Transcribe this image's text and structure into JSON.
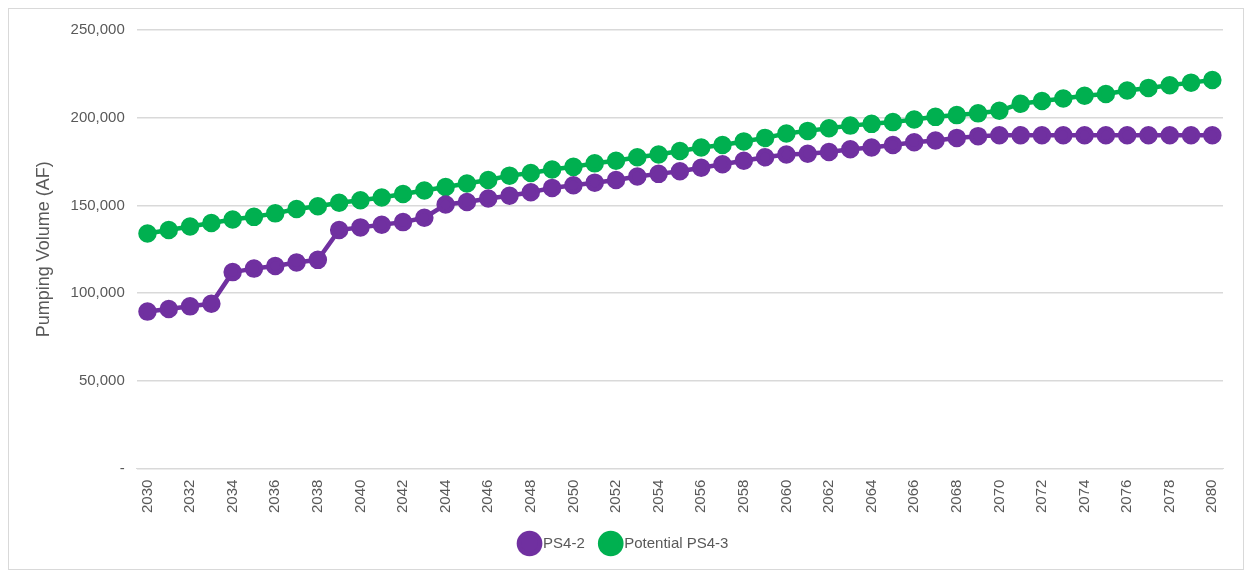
{
  "chart_data": {
    "type": "line",
    "ylabel": "Pumping Volume (AF)",
    "categories": [
      "2030",
      null,
      "2032",
      null,
      "2034",
      null,
      "2036",
      null,
      "2038",
      null,
      "2040",
      null,
      "2042",
      null,
      "2044",
      null,
      "2046",
      null,
      "2048",
      null,
      "2050",
      null,
      "2052",
      null,
      "2054",
      null,
      "2056",
      null,
      "2058",
      null,
      "2060",
      null,
      "2062",
      null,
      "2064",
      null,
      "2066",
      null,
      "2068",
      null,
      "2070",
      null,
      "2072",
      null,
      "2074",
      null,
      "2076",
      null,
      "2078",
      null,
      "2080"
    ],
    "series": [
      {
        "name": "PS4-2",
        "color": "#7030a0",
        "values": [
          89500,
          91000,
          92500,
          94000,
          112000,
          114000,
          115500,
          117500,
          119000,
          136000,
          137500,
          139000,
          140500,
          143000,
          150500,
          152000,
          154000,
          155500,
          157500,
          160000,
          161500,
          163000,
          164500,
          166500,
          168000,
          169500,
          171500,
          173500,
          175500,
          177500,
          179000,
          179500,
          180500,
          182000,
          183000,
          184500,
          186000,
          187000,
          188500,
          189500,
          190000,
          190000,
          190000,
          190000,
          190000,
          190000,
          190000,
          190000,
          190000,
          190000,
          190000
        ]
      },
      {
        "name": "Potential PS4-3",
        "color": "#00b050",
        "values": [
          134000,
          136000,
          138000,
          140000,
          142000,
          143500,
          145500,
          148000,
          149500,
          151500,
          153000,
          154500,
          156500,
          158500,
          160500,
          162500,
          164500,
          167000,
          168500,
          170500,
          172000,
          174000,
          175500,
          177500,
          179000,
          181000,
          183000,
          184500,
          186500,
          188500,
          191000,
          192500,
          194000,
          195500,
          196500,
          197500,
          199000,
          200500,
          201500,
          202500,
          204000,
          208000,
          209500,
          211000,
          212500,
          213500,
          215500,
          217000,
          218500,
          220000,
          221500
        ]
      }
    ],
    "ylim": [
      0,
      250000
    ],
    "yticks": [
      {
        "value": 0,
        "label": "-"
      },
      {
        "value": 50000,
        "label": "50,000"
      },
      {
        "value": 100000,
        "label": "100,000"
      },
      {
        "value": 150000,
        "label": "150,000"
      },
      {
        "value": 200000,
        "label": "200,000"
      },
      {
        "value": 250000,
        "label": "250,000"
      }
    ],
    "grid": "y",
    "legend": "bottom",
    "marker": "circle",
    "line_style": "solid"
  }
}
